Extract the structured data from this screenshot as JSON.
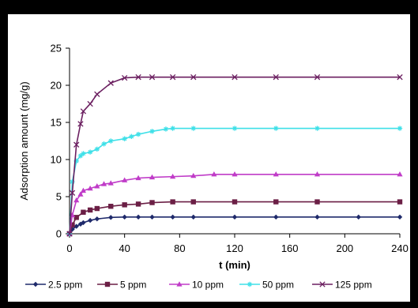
{
  "chart_data": {
    "type": "line",
    "title": "",
    "xlabel": "t (min)",
    "ylabel": "Adsorption amount (mg/g)",
    "xlim": [
      0,
      240
    ],
    "ylim": [
      0,
      25
    ],
    "xticks": [
      0,
      40,
      80,
      120,
      160,
      200,
      240
    ],
    "yticks": [
      0,
      5,
      10,
      15,
      20,
      25
    ],
    "xtick_labels": [
      "0",
      "40",
      "80",
      "120",
      "160",
      "200",
      "240"
    ],
    "ytick_labels": [
      "0",
      "5",
      "10",
      "15",
      "20",
      "25"
    ],
    "grid": false,
    "legend_position": "bottom",
    "series": [
      {
        "name": "2.5 ppm",
        "color": "#1f2a6b",
        "marker": "diamond",
        "x": [
          0,
          2,
          5,
          8,
          10,
          15,
          20,
          30,
          40,
          50,
          60,
          75,
          90,
          120,
          150,
          180,
          210,
          240
        ],
        "y": [
          0,
          0.6,
          1.0,
          1.3,
          1.5,
          1.8,
          2.0,
          2.2,
          2.25,
          2.25,
          2.25,
          2.25,
          2.25,
          2.25,
          2.25,
          2.25,
          2.25,
          2.25
        ]
      },
      {
        "name": "5 ppm",
        "color": "#6b1f45",
        "marker": "square",
        "x": [
          0,
          2,
          5,
          10,
          15,
          20,
          30,
          40,
          50,
          60,
          75,
          90,
          120,
          150,
          180,
          240
        ],
        "y": [
          0,
          1.2,
          2.2,
          2.9,
          3.2,
          3.4,
          3.7,
          3.9,
          4.0,
          4.2,
          4.3,
          4.3,
          4.3,
          4.3,
          4.3,
          4.3
        ]
      },
      {
        "name": "10 ppm",
        "color": "#c03cc8",
        "marker": "triangle",
        "x": [
          0,
          2,
          5,
          8,
          10,
          15,
          20,
          25,
          30,
          40,
          50,
          60,
          75,
          90,
          105,
          120,
          150,
          180,
          240
        ],
        "y": [
          0,
          2.5,
          4.5,
          5.3,
          5.8,
          6.1,
          6.4,
          6.7,
          6.8,
          7.2,
          7.5,
          7.6,
          7.7,
          7.8,
          8.0,
          8.0,
          8.0,
          8.0,
          8.0
        ]
      },
      {
        "name": "50 ppm",
        "color": "#3fe0e8",
        "marker": "star",
        "x": [
          0,
          2,
          5,
          8,
          10,
          15,
          20,
          25,
          30,
          40,
          45,
          50,
          60,
          70,
          75,
          90,
          120,
          150,
          180,
          240
        ],
        "y": [
          0,
          7.0,
          9.8,
          10.5,
          10.8,
          11.0,
          11.4,
          12.1,
          12.5,
          12.8,
          13.1,
          13.4,
          13.8,
          14.1,
          14.2,
          14.2,
          14.2,
          14.2,
          14.2,
          14.2
        ]
      },
      {
        "name": "125 ppm",
        "color": "#6b1f60",
        "marker": "x",
        "x": [
          0,
          2,
          5,
          8,
          10,
          15,
          20,
          30,
          40,
          50,
          60,
          75,
          90,
          120,
          150,
          180,
          240
        ],
        "y": [
          0,
          5.5,
          12.0,
          14.8,
          16.5,
          17.5,
          18.8,
          20.3,
          21.0,
          21.1,
          21.1,
          21.1,
          21.1,
          21.1,
          21.1,
          21.1,
          21.1
        ]
      }
    ]
  }
}
